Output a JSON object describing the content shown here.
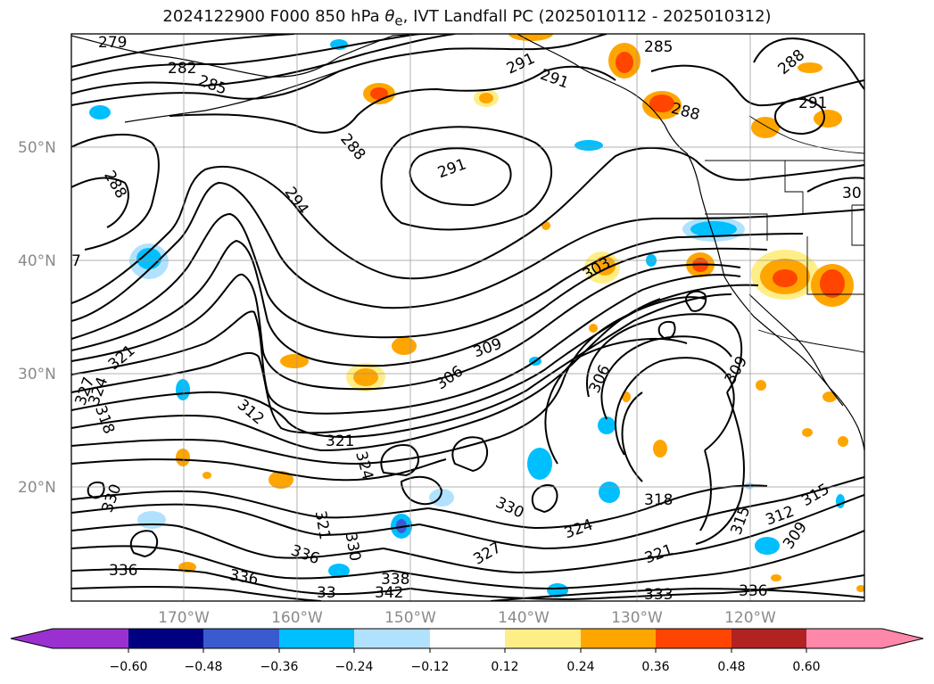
{
  "title": {
    "prefix": "2024122900 F000 850 hPa ",
    "symbol": "θ",
    "subscript": "e",
    "suffix": ", IVT Landfall PC (2025010112 - 2025010312)"
  },
  "map": {
    "lat_labels": [
      "50°N",
      "40°N",
      "30°N",
      "20°N"
    ],
    "lon_labels": [
      "170°W",
      "160°W",
      "150°W",
      "140°W",
      "130°W",
      "120°W"
    ],
    "grid": true
  },
  "contour_labels": [
    "279",
    "282",
    "285",
    "288",
    "291",
    "294",
    "285",
    "291",
    "291",
    "288",
    "288",
    "291",
    "288",
    "30",
    "7",
    "303",
    "309",
    "306",
    "306",
    "309",
    "321",
    "327",
    "324",
    "318",
    "312",
    "321",
    "324",
    "330",
    "330",
    "336",
    "336",
    "321",
    "330",
    "336",
    "338",
    "342",
    "33",
    "327",
    "324",
    "321",
    "318",
    "315",
    "312",
    "309",
    "315",
    "336",
    "333"
  ],
  "colorbar": {
    "ticks": [
      "−0.60",
      "−0.48",
      "−0.36",
      "−0.24",
      "−0.12",
      "0.12",
      "0.24",
      "0.36",
      "0.48",
      "0.60"
    ],
    "colors": {
      "under": "#9b30d0",
      "neg_060": "#000080",
      "neg_048": "#3a5bd0",
      "neg_036": "#00bfff",
      "neg_024": "#b0e2ff",
      "neutral": "#ffffff",
      "pos_012": "#ffee88",
      "pos_024": "#ffa500",
      "pos_036": "#ff4500",
      "pos_048": "#b22222",
      "over": "#ff88aa"
    }
  }
}
